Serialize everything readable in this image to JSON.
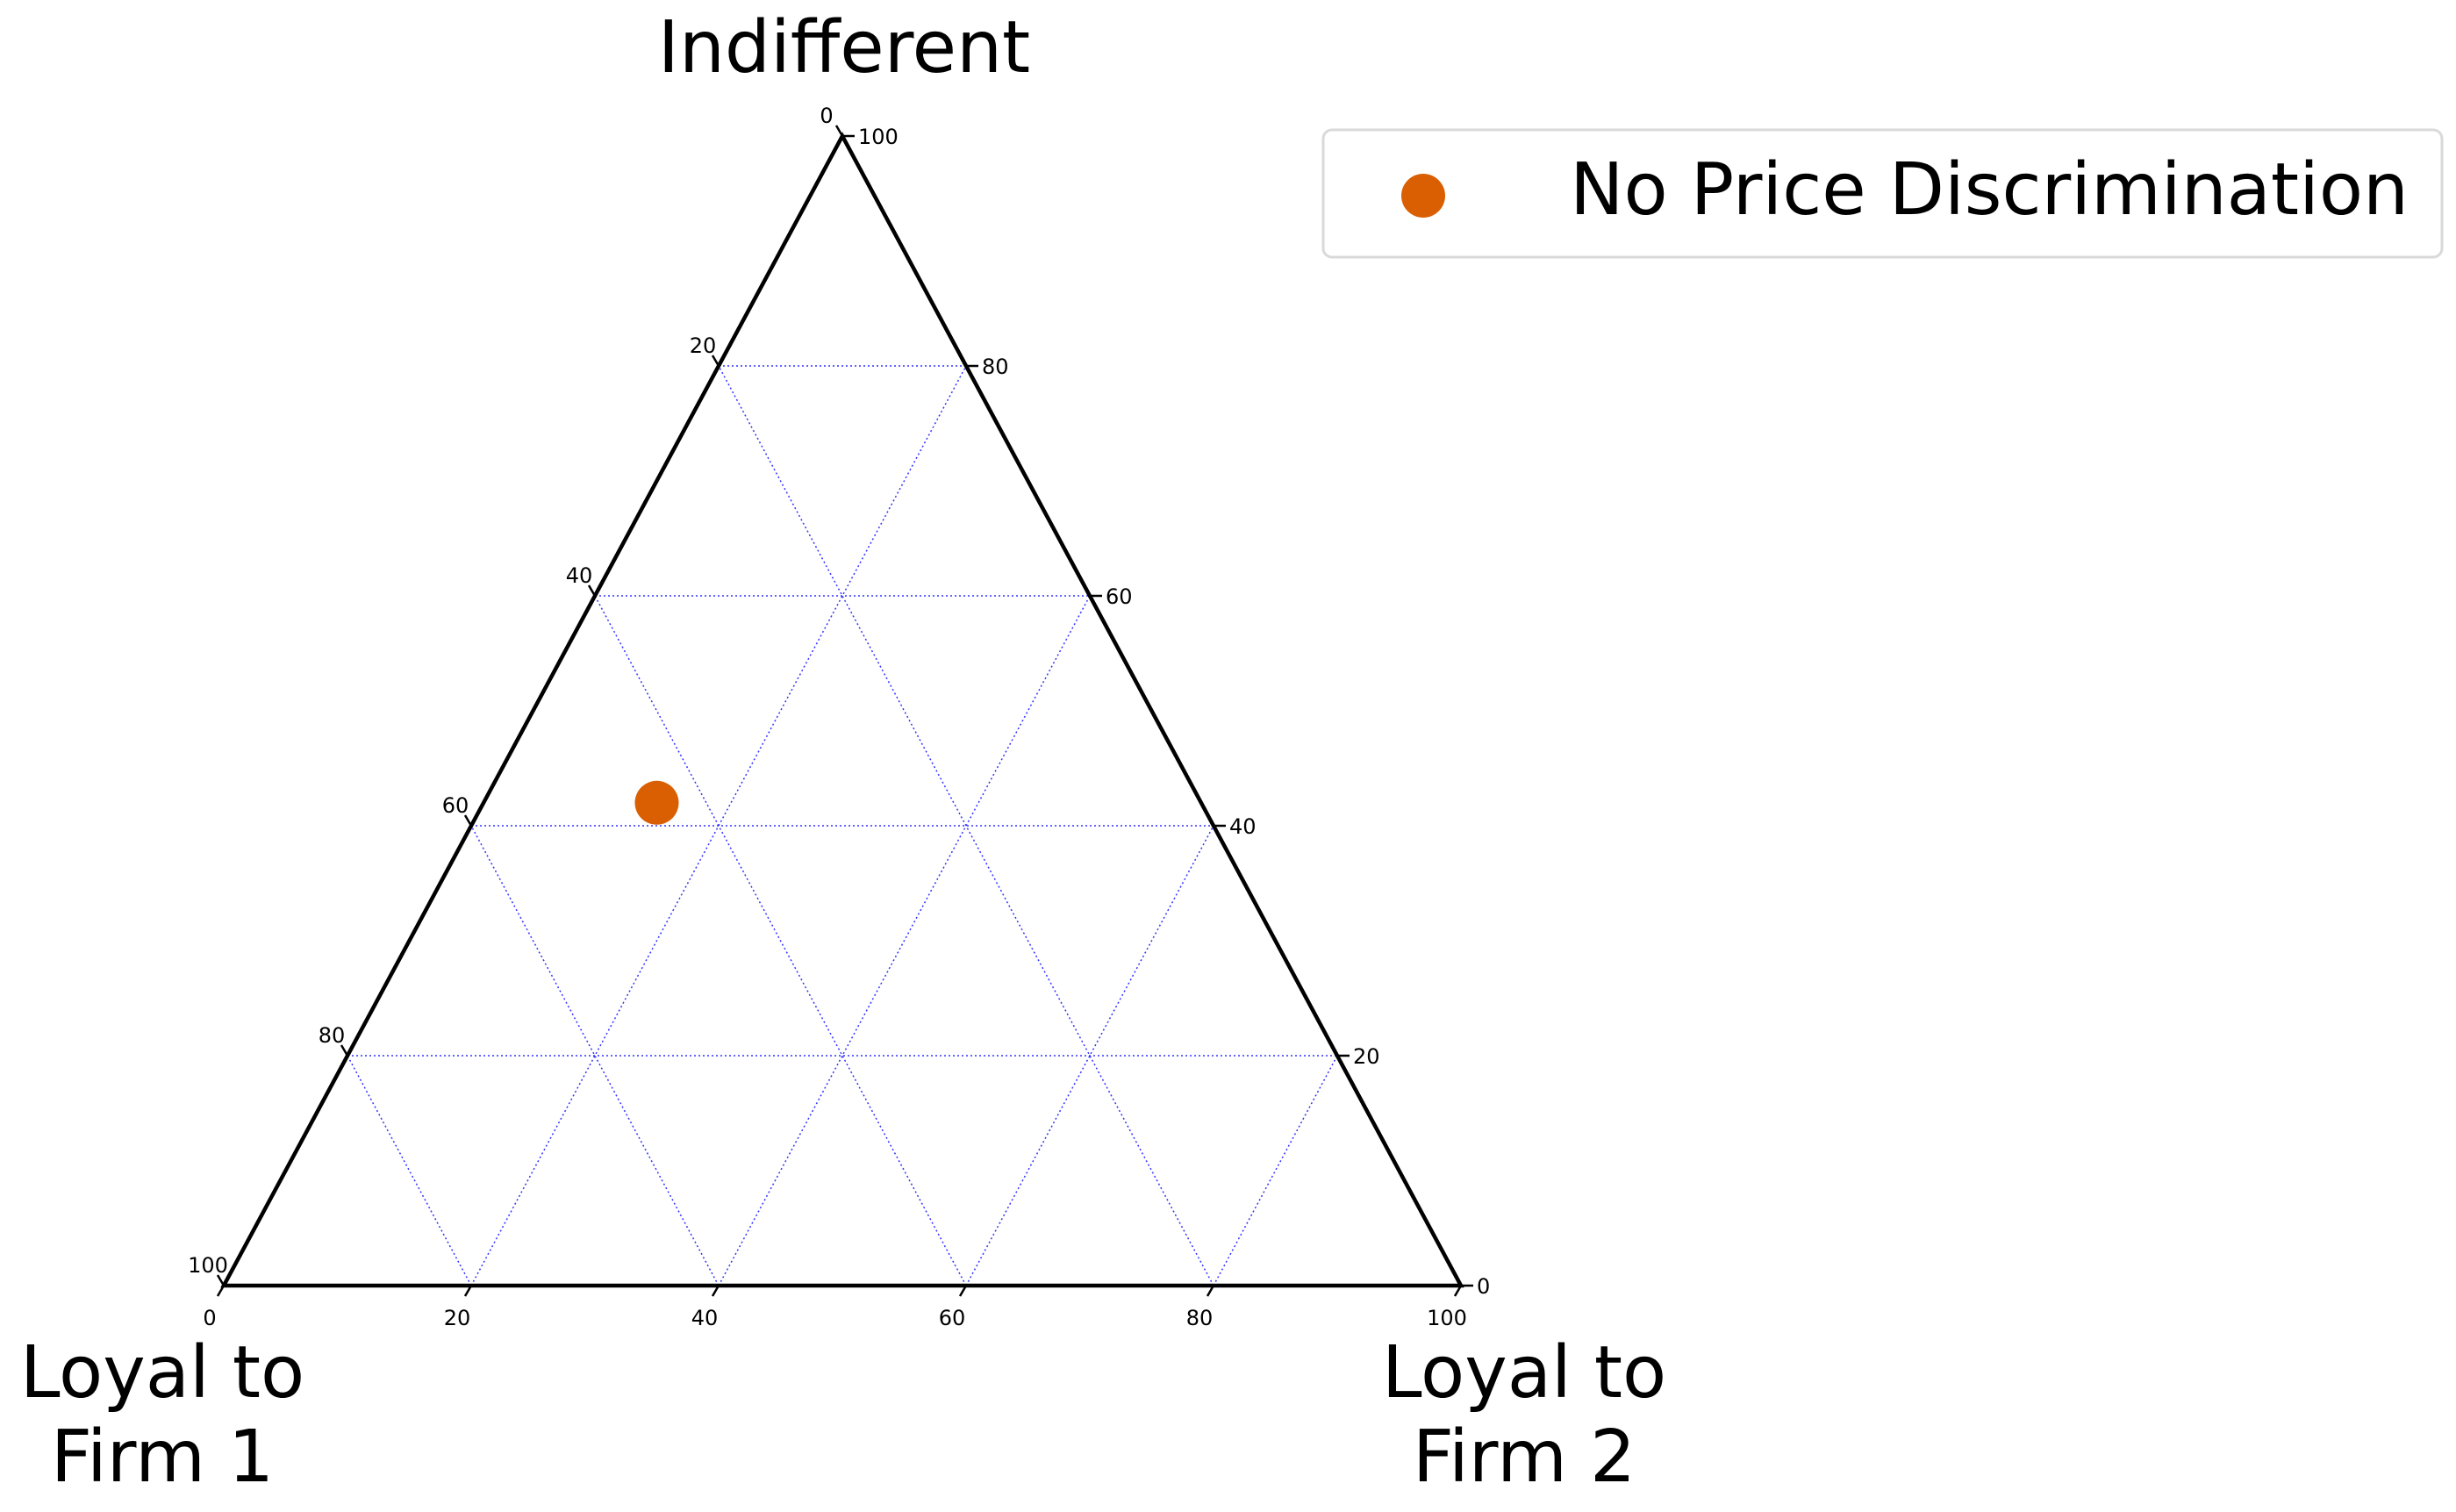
{
  "chart_data": {
    "type": "scatter",
    "subtype": "ternary",
    "axes": {
      "top": {
        "label": "Indifferent"
      },
      "left": {
        "label_lines": [
          "Loyal to",
          "Firm 1"
        ]
      },
      "right": {
        "label_lines": [
          "Loyal to",
          "Firm 2"
        ]
      }
    },
    "scale": [
      0,
      100
    ],
    "ticks": [
      0,
      20,
      40,
      60,
      80,
      100
    ],
    "grid": true,
    "legend": {
      "placement": "top-right",
      "entries": [
        {
          "label": "No Price Discrimination",
          "color": "#d95f02"
        }
      ]
    },
    "series": [
      {
        "name": "No Price Discrimination",
        "color": "#d95f02",
        "marker": "circle",
        "points": [
          {
            "loyal_firm1": 44,
            "loyal_firm2": 14,
            "indifferent": 42
          }
        ]
      }
    ]
  }
}
